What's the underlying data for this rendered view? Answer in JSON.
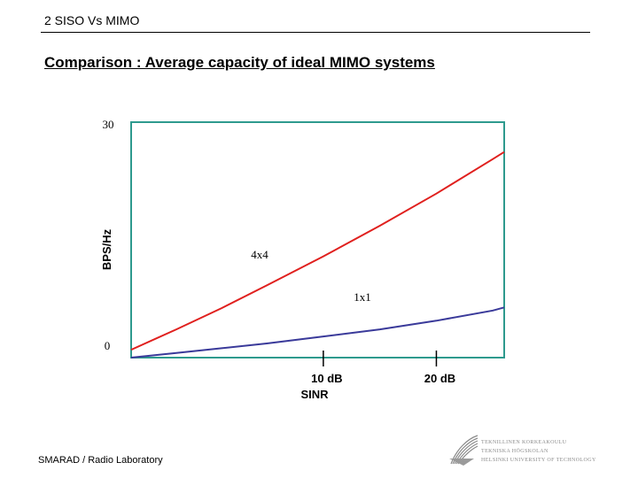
{
  "header": {
    "title": "2 SISO Vs MIMO",
    "heading": "Comparison : Average capacity of ideal MIMO systems"
  },
  "chart_data": {
    "type": "line",
    "title": "",
    "xlabel": "SINR",
    "ylabel": "BPS/Hz",
    "x_ticks": [
      "10 dB",
      "20 dB"
    ],
    "y_ticks": [
      "0",
      "30"
    ],
    "xlim": [
      -7,
      26
    ],
    "ylim": [
      0,
      30
    ],
    "x": [
      -7,
      -3,
      1,
      5,
      10,
      15,
      20,
      25,
      26
    ],
    "series": [
      {
        "name": "4x4",
        "color": "#e0201e",
        "values": [
          1.0,
          3.6,
          6.3,
          9.2,
          12.9,
          16.8,
          20.9,
          25.3,
          26.2
        ]
      },
      {
        "name": "1x1",
        "color": "#3a3a9a",
        "values": [
          0.0,
          0.6,
          1.2,
          1.8,
          2.7,
          3.6,
          4.7,
          6.0,
          6.4
        ]
      }
    ],
    "annotations": [
      "4x4",
      "1x1"
    ],
    "grid": false,
    "frame_color": "#2e9a8e",
    "ytick_labels": [
      "30",
      "0"
    ]
  },
  "footer": {
    "lab": "SMARAD / Radio Laboratory",
    "logo_lines": [
      "TEKNILLINEN KORKEAKOULU",
      "TEKNISKA HÖGSKOLAN",
      "HELSINKI UNIVERSITY OF TECHNOLOGY"
    ]
  },
  "colors": {
    "accent": "#2e9a8e",
    "series_4x4": "#e0201e",
    "series_1x1": "#3a3a9a"
  }
}
